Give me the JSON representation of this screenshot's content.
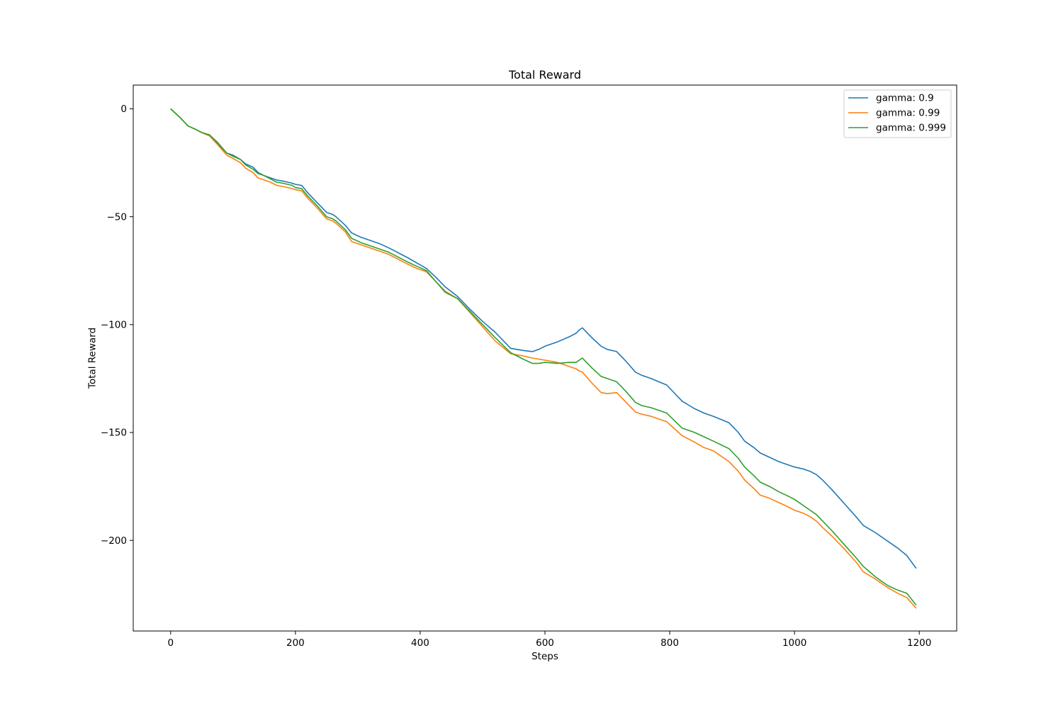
{
  "chart_data": {
    "type": "line",
    "title": "Total Reward",
    "xlabel": "Steps",
    "ylabel": "Total Reward",
    "xlim": [
      -60,
      1260
    ],
    "ylim": [
      -242,
      11
    ],
    "xticks": [
      0,
      200,
      400,
      600,
      800,
      1000,
      1200
    ],
    "yticks": [
      0,
      -50,
      -100,
      -150,
      -200
    ],
    "ytick_labels": [
      "0",
      "−50",
      "−100",
      "−150",
      "−200"
    ],
    "grid": false,
    "legend_position": "top-right",
    "series": [
      {
        "name": "gamma: 0.9",
        "color": "#1f77b4",
        "x": [
          0,
          15,
          28,
          40,
          50,
          62,
          75,
          90,
          100,
          112,
          120,
          132,
          140,
          150,
          160,
          170,
          180,
          195,
          200,
          210,
          220,
          235,
          250,
          260,
          265,
          280,
          290,
          305,
          320,
          335,
          350,
          360,
          380,
          395,
          410,
          425,
          440,
          460,
          480,
          500,
          520,
          545,
          555,
          565,
          580,
          590,
          600,
          620,
          640,
          650,
          655,
          660,
          675,
          690,
          700,
          715,
          730,
          745,
          755,
          770,
          795,
          820,
          840,
          855,
          870,
          895,
          910,
          920,
          935,
          945,
          960,
          975,
          990,
          1000,
          1015,
          1025,
          1035,
          1045,
          1060,
          1080,
          1100,
          1110,
          1130,
          1150,
          1165,
          1180,
          1195
        ],
        "y": [
          0,
          -4,
          -8,
          -9.5,
          -11,
          -12.5,
          -16,
          -20.5,
          -21.5,
          -23.5,
          -25.5,
          -27,
          -29.5,
          -31,
          -32,
          -33,
          -33.5,
          -34.5,
          -35,
          -35.5,
          -39,
          -43.5,
          -48,
          -49,
          -50,
          -54,
          -57.5,
          -59.5,
          -61,
          -62.5,
          -64.5,
          -66,
          -69,
          -71.5,
          -74,
          -78,
          -82.5,
          -87,
          -93,
          -98.5,
          -103.5,
          -111,
          -111.5,
          -112,
          -112.5,
          -111.5,
          -110,
          -108,
          -105.5,
          -104,
          -102.5,
          -101.5,
          -106,
          -110,
          -111.5,
          -112.5,
          -117,
          -122,
          -123.5,
          -125,
          -128,
          -135.5,
          -139,
          -141,
          -142.5,
          -145.5,
          -150,
          -154,
          -157,
          -159.5,
          -161.5,
          -163.5,
          -165,
          -166,
          -167,
          -168,
          -169.5,
          -172,
          -176.5,
          -183,
          -189.5,
          -193,
          -196.5,
          -200.5,
          -203.5,
          -207,
          -213
        ]
      },
      {
        "name": "gamma: 0.99",
        "color": "#ff7f0e",
        "x": [
          0,
          15,
          28,
          40,
          50,
          62,
          75,
          90,
          100,
          112,
          120,
          132,
          140,
          150,
          160,
          170,
          180,
          195,
          200,
          210,
          220,
          235,
          250,
          260,
          265,
          280,
          290,
          305,
          320,
          335,
          350,
          360,
          380,
          395,
          410,
          425,
          440,
          460,
          480,
          500,
          520,
          545,
          555,
          565,
          580,
          590,
          600,
          620,
          640,
          650,
          655,
          660,
          675,
          690,
          700,
          715,
          730,
          745,
          755,
          770,
          795,
          820,
          840,
          855,
          870,
          895,
          910,
          920,
          935,
          945,
          960,
          975,
          990,
          1000,
          1015,
          1025,
          1035,
          1045,
          1060,
          1080,
          1100,
          1110,
          1130,
          1150,
          1165,
          1180,
          1195
        ],
        "y": [
          0,
          -4,
          -8,
          -9.5,
          -11,
          -12.5,
          -16.5,
          -21.5,
          -23,
          -25,
          -27.5,
          -29.5,
          -32,
          -33,
          -34,
          -35.5,
          -36,
          -37,
          -37.5,
          -38,
          -41.5,
          -46,
          -51,
          -52,
          -53,
          -57,
          -61.5,
          -63,
          -64.5,
          -66,
          -67.5,
          -69,
          -72,
          -74,
          -75.5,
          -80,
          -84.5,
          -88,
          -94.5,
          -101,
          -107.5,
          -113.5,
          -114,
          -114.5,
          -115.5,
          -116,
          -116.5,
          -117.5,
          -119.5,
          -120.5,
          -121.5,
          -122,
          -127,
          -131.5,
          -132,
          -131.5,
          -136,
          -140.5,
          -141.5,
          -142.5,
          -145,
          -151.5,
          -154.5,
          -157,
          -158.5,
          -163.5,
          -168,
          -172,
          -176,
          -179,
          -180.5,
          -182.5,
          -184.5,
          -186,
          -187.5,
          -189,
          -191,
          -194,
          -198,
          -204,
          -210.5,
          -214.5,
          -218,
          -222,
          -224.5,
          -226.5,
          -231.5
        ]
      },
      {
        "name": "gamma: 0.999",
        "color": "#2ca02c",
        "x": [
          0,
          15,
          28,
          40,
          50,
          62,
          75,
          90,
          100,
          112,
          120,
          132,
          140,
          150,
          160,
          170,
          180,
          195,
          200,
          210,
          220,
          235,
          250,
          260,
          265,
          280,
          290,
          305,
          320,
          335,
          350,
          360,
          380,
          395,
          410,
          425,
          440,
          460,
          480,
          500,
          520,
          545,
          555,
          565,
          580,
          590,
          600,
          620,
          640,
          650,
          655,
          660,
          675,
          690,
          700,
          715,
          730,
          745,
          755,
          770,
          795,
          820,
          840,
          855,
          870,
          895,
          910,
          920,
          935,
          945,
          960,
          975,
          990,
          1000,
          1015,
          1025,
          1035,
          1045,
          1060,
          1080,
          1100,
          1110,
          1130,
          1150,
          1165,
          1180,
          1195
        ],
        "y": [
          0,
          -4,
          -8,
          -9.5,
          -11,
          -12,
          -15.5,
          -20.5,
          -22,
          -23.5,
          -26,
          -28,
          -30,
          -31,
          -32.5,
          -34,
          -34.5,
          -35.5,
          -36.5,
          -37,
          -40.5,
          -45,
          -50,
          -51,
          -52,
          -56,
          -60,
          -62,
          -63.5,
          -65,
          -66.5,
          -68,
          -71,
          -73,
          -75,
          -80,
          -85,
          -88,
          -94,
          -100,
          -106,
          -113,
          -114.5,
          -116,
          -118,
          -118,
          -117.5,
          -118,
          -117.5,
          -117.5,
          -116.5,
          -115.5,
          -120,
          -124,
          -125,
          -126.5,
          -131,
          -136,
          -137.5,
          -138.5,
          -141,
          -148,
          -150,
          -152,
          -154,
          -157.5,
          -162,
          -166,
          -170,
          -173,
          -175,
          -177.5,
          -179.5,
          -181,
          -184,
          -186,
          -188,
          -191,
          -195.5,
          -202,
          -208.5,
          -212,
          -217,
          -221,
          -223,
          -224.5,
          -230
        ]
      }
    ]
  }
}
